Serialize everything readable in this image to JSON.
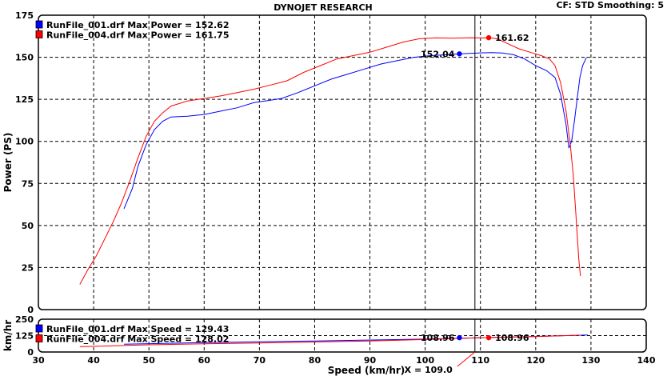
{
  "header": {
    "title": "DYNOJET RESEARCH",
    "info": "CF: STD  Smoothing: 5"
  },
  "colors": {
    "run1": "#0000ff",
    "run2": "#ff0000"
  },
  "cursor": {
    "x": 109.0,
    "label": "X = 109.0"
  },
  "chart_data": [
    {
      "type": "line",
      "xlabel": "",
      "ylabel": "Power (PS)",
      "xlim": [
        30,
        140
      ],
      "ylim": [
        0,
        175
      ],
      "x_ticks": [
        30,
        40,
        50,
        60,
        70,
        80,
        90,
        100,
        110,
        120,
        130,
        140
      ],
      "y_ticks": [
        0,
        25,
        50,
        75,
        100,
        125,
        150,
        175
      ],
      "grid": true,
      "legend": [
        {
          "text": "RunFile_001.drf Max Power = 152.62",
          "color": "#0000ff"
        },
        {
          "text": "RunFile_004.drf Max Power = 161.75",
          "color": "#ff0000"
        }
      ],
      "markers": [
        {
          "x": 106.2,
          "y": 152.04,
          "label": "152.04",
          "color": "#0000ff",
          "side": "left"
        },
        {
          "x": 111.5,
          "y": 161.62,
          "label": "161.62",
          "color": "#ff0000",
          "side": "right"
        }
      ],
      "series": [
        {
          "color": "#0000ff",
          "x": [
            45.5,
            47,
            48,
            49.5,
            51,
            52.5,
            54,
            57,
            60,
            63,
            66,
            69,
            72,
            74,
            77,
            80,
            83,
            86,
            89,
            92,
            95,
            98,
            101,
            104,
            106,
            108,
            110,
            112,
            114,
            116,
            118,
            120,
            122,
            123.5,
            124.5,
            125.5,
            126,
            126.5,
            127,
            127.5,
            128,
            128.5,
            129.2
          ],
          "y": [
            60,
            72,
            85,
            98,
            107,
            112,
            114.5,
            115,
            116,
            118,
            120,
            123,
            124.5,
            125.5,
            129,
            133,
            137,
            140,
            143,
            146,
            148,
            150,
            151,
            151.5,
            152,
            152.3,
            152.6,
            152.8,
            152.5,
            151.5,
            149,
            145,
            142,
            138,
            128,
            110,
            96,
            100,
            112,
            125,
            138,
            145,
            150
          ]
        },
        {
          "color": "#ff0000",
          "x": [
            37.5,
            39,
            40.5,
            42,
            43.5,
            45,
            46.5,
            48,
            49.5,
            51,
            52.5,
            54,
            57,
            60,
            63,
            66,
            69,
            72,
            75,
            78,
            81,
            84,
            87,
            90,
            93,
            96,
            99,
            102,
            105,
            108,
            110,
            111.5,
            113,
            115,
            117,
            119,
            121,
            122.5,
            123.5,
            124.5,
            125.5,
            126.3,
            126.8,
            127.3,
            127.8,
            128.1
          ],
          "y": [
            15,
            24,
            32,
            42,
            52,
            63,
            76,
            90,
            103,
            112,
            117,
            121,
            124,
            125.5,
            127,
            129,
            131,
            133.5,
            136,
            141,
            145,
            149,
            151,
            153,
            156,
            159,
            161,
            161.5,
            161.3,
            161.6,
            161.5,
            161.6,
            161,
            158,
            155,
            153,
            151,
            149,
            145,
            135,
            118,
            97,
            80,
            55,
            30,
            20
          ]
        }
      ]
    },
    {
      "type": "line",
      "xlabel": "Speed (km/hr)",
      "ylabel": "km/hr",
      "xlim": [
        30,
        140
      ],
      "ylim": [
        0,
        250
      ],
      "x_ticks": [
        30,
        40,
        50,
        60,
        70,
        80,
        90,
        100,
        110,
        120,
        130,
        140
      ],
      "y_ticks": [
        0,
        125,
        250
      ],
      "grid": true,
      "legend": [
        {
          "text": "RunFile_001.drf Max Speed = 129.43",
          "color": "#0000ff"
        },
        {
          "text": "RunFile_004.drf Max Speed = 128.02",
          "color": "#ff0000"
        }
      ],
      "markers": [
        {
          "x": 106.2,
          "y": 108.96,
          "label": "108.96",
          "color": "#0000ff",
          "side": "left"
        },
        {
          "x": 111.5,
          "y": 108.96,
          "label": "108.96",
          "color": "#ff0000",
          "side": "right"
        }
      ],
      "series": [
        {
          "color": "#0000ff",
          "x": [
            45.5,
            60,
            80,
            100,
            106.2,
            110,
            120,
            129.4
          ],
          "y": [
            60,
            72,
            84,
            98,
            104,
            108.96,
            118,
            129.43
          ]
        },
        {
          "color": "#ff0000",
          "x": [
            37.5,
            50,
            60,
            70,
            80,
            90,
            100,
            110,
            120,
            128
          ],
          "y": [
            40,
            55,
            62,
            68,
            76,
            84,
            95,
            108.96,
            118,
            128.02
          ]
        }
      ]
    }
  ]
}
